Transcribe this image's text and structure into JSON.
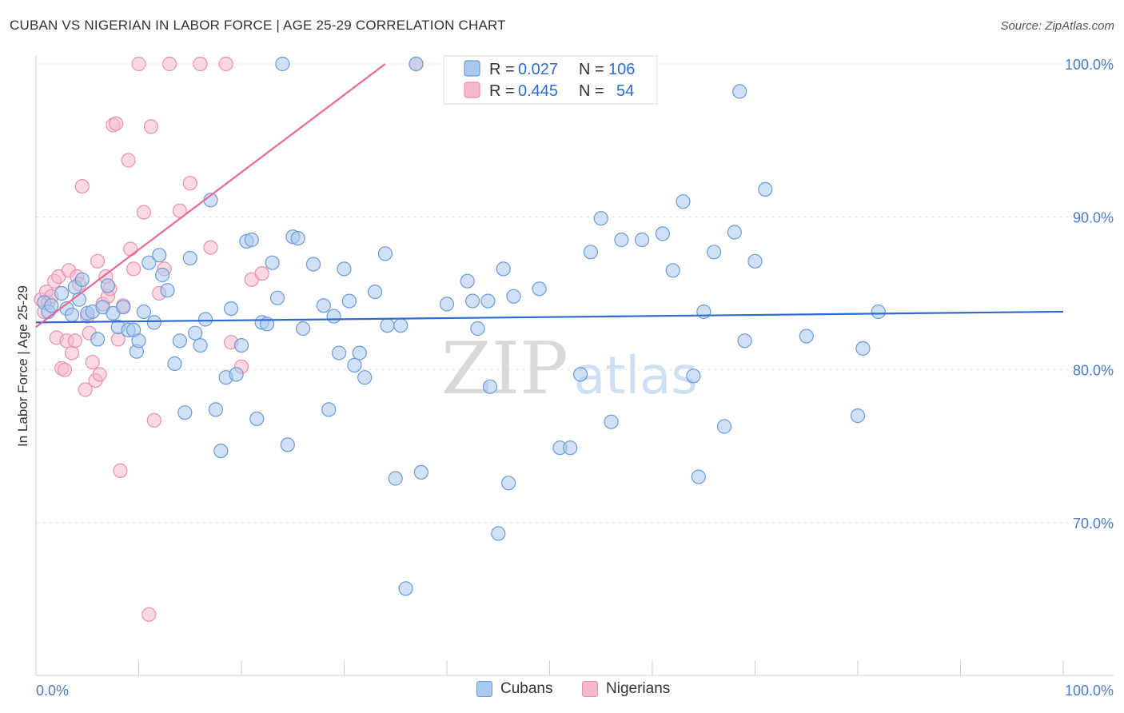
{
  "title": "CUBAN VS NIGERIAN IN LABOR FORCE | AGE 25-29 CORRELATION CHART",
  "source": "Source: ZipAtlas.com",
  "watermark": {
    "zip": "ZIP",
    "atlas": "atlas"
  },
  "legend": {
    "r_label": "R =",
    "n_label": "N =",
    "rows": [
      {
        "r": "0.027",
        "n": "106"
      },
      {
        "r": "0.445",
        "n": "54"
      }
    ]
  },
  "bottom_legend": {
    "cubans": "Cubans",
    "nigerians": "Nigerians"
  },
  "colors": {
    "cuban_fill": "#a9c8ee",
    "cuban_stroke": "#6b9ad8",
    "cuban_line": "#2f6bd0",
    "nigerian_fill": "#f6b9cc",
    "nigerian_stroke": "#e990ad",
    "nigerian_line": "#e46a93",
    "grid": "#e6e6e6",
    "axis_text": "#4a7bc8"
  },
  "chart_data": {
    "type": "scatter",
    "title": "CUBAN VS NIGERIAN IN LABOR FORCE | AGE 25-29 CORRELATION CHART",
    "xlabel": "",
    "ylabel": "In Labor Force | Age 25-29",
    "xlim": [
      0,
      100
    ],
    "ylim": [
      60,
      102
    ],
    "x_tick_labels": [
      "0.0%",
      "100.0%"
    ],
    "y_ticks": [
      70,
      80,
      90,
      100
    ],
    "y_tick_labels": [
      "70.0%",
      "80.0%",
      "90.0%",
      "100.0%"
    ],
    "legend_position": "top-center",
    "series": [
      {
        "name": "Cubans",
        "R": 0.027,
        "N": 106,
        "trendline": [
          [
            0,
            83.1
          ],
          [
            100,
            83.8
          ]
        ],
        "points": [
          [
            0.8,
            84.4
          ],
          [
            1.2,
            83.8
          ],
          [
            1.5,
            84.2
          ],
          [
            2.5,
            85.0
          ],
          [
            3,
            84.0
          ],
          [
            3.5,
            83.6
          ],
          [
            3.8,
            85.4
          ],
          [
            4.2,
            84.6
          ],
          [
            4.5,
            85.9
          ],
          [
            5,
            83.7
          ],
          [
            5.5,
            83.8
          ],
          [
            6,
            82.0
          ],
          [
            6.5,
            84.1
          ],
          [
            7,
            85.5
          ],
          [
            7.5,
            83.7
          ],
          [
            8,
            82.8
          ],
          [
            8.5,
            84.1
          ],
          [
            9,
            82.6
          ],
          [
            9.5,
            82.6
          ],
          [
            9.8,
            81.2
          ],
          [
            10,
            81.9
          ],
          [
            10.5,
            83.8
          ],
          [
            11,
            87.0
          ],
          [
            11.5,
            83.1
          ],
          [
            12,
            87.5
          ],
          [
            12.3,
            86.2
          ],
          [
            12.8,
            85.2
          ],
          [
            13.5,
            80.4
          ],
          [
            14,
            81.9
          ],
          [
            14.5,
            77.2
          ],
          [
            15,
            87.3
          ],
          [
            15.5,
            82.4
          ],
          [
            16,
            81.6
          ],
          [
            16.5,
            83.3
          ],
          [
            17,
            91.1
          ],
          [
            17.5,
            77.4
          ],
          [
            18,
            74.7
          ],
          [
            18.5,
            79.5
          ],
          [
            19,
            84.0
          ],
          [
            19.5,
            79.7
          ],
          [
            20,
            81.6
          ],
          [
            20.5,
            88.4
          ],
          [
            21,
            88.5
          ],
          [
            21.5,
            76.8
          ],
          [
            22,
            83.1
          ],
          [
            22.5,
            83.0
          ],
          [
            23,
            87.0
          ],
          [
            23.5,
            84.7
          ],
          [
            24,
            100.0
          ],
          [
            24.5,
            75.1
          ],
          [
            25,
            88.7
          ],
          [
            25.5,
            88.6
          ],
          [
            26,
            82.7
          ],
          [
            27,
            86.9
          ],
          [
            28,
            84.2
          ],
          [
            28.5,
            77.4
          ],
          [
            29,
            83.5
          ],
          [
            29.5,
            81.1
          ],
          [
            30,
            86.6
          ],
          [
            30.5,
            84.5
          ],
          [
            31,
            80.3
          ],
          [
            31.5,
            81.1
          ],
          [
            32,
            79.5
          ],
          [
            33,
            85.1
          ],
          [
            34,
            87.6
          ],
          [
            34.2,
            82.9
          ],
          [
            35,
            72.9
          ],
          [
            35.5,
            82.9
          ],
          [
            36,
            65.7
          ],
          [
            37,
            100.0
          ],
          [
            37.5,
            73.3
          ],
          [
            40,
            84.3
          ],
          [
            42,
            85.8
          ],
          [
            42.5,
            84.5
          ],
          [
            43,
            82.7
          ],
          [
            44,
            84.5
          ],
          [
            44.2,
            78.9
          ],
          [
            45,
            69.3
          ],
          [
            45.5,
            86.6
          ],
          [
            46,
            72.6
          ],
          [
            46.5,
            84.8
          ],
          [
            49,
            85.3
          ],
          [
            51,
            74.9
          ],
          [
            52,
            74.9
          ],
          [
            53,
            79.7
          ],
          [
            54,
            87.7
          ],
          [
            55,
            89.9
          ],
          [
            56,
            76.6
          ],
          [
            57,
            88.5
          ],
          [
            59,
            88.5
          ],
          [
            61,
            88.9
          ],
          [
            62,
            86.5
          ],
          [
            63,
            91.0
          ],
          [
            64,
            79.6
          ],
          [
            64.5,
            73.0
          ],
          [
            65,
            83.8
          ],
          [
            66,
            87.7
          ],
          [
            67,
            76.3
          ],
          [
            68,
            89.0
          ],
          [
            68.5,
            98.2
          ],
          [
            69,
            81.9
          ],
          [
            70,
            87.1
          ],
          [
            71,
            91.8
          ],
          [
            75,
            82.2
          ],
          [
            80,
            77.0
          ],
          [
            80.5,
            81.4
          ],
          [
            82,
            83.8
          ]
        ]
      },
      {
        "name": "Nigerians",
        "R": 0.445,
        "N": 54,
        "trendline": [
          [
            0,
            82.8
          ],
          [
            34,
            100.0
          ]
        ],
        "points": [
          [
            0.5,
            84.6
          ],
          [
            0.8,
            83.8
          ],
          [
            1,
            85.1
          ],
          [
            1.2,
            84.4
          ],
          [
            1.5,
            84.8
          ],
          [
            1.8,
            85.8
          ],
          [
            2,
            82.1
          ],
          [
            2.2,
            86.1
          ],
          [
            2.5,
            80.1
          ],
          [
            2.8,
            80.0
          ],
          [
            3,
            81.9
          ],
          [
            3.2,
            86.5
          ],
          [
            3.5,
            81.1
          ],
          [
            3.8,
            81.9
          ],
          [
            4,
            86.1
          ],
          [
            4.2,
            85.6
          ],
          [
            4.5,
            92.0
          ],
          [
            4.8,
            78.7
          ],
          [
            5,
            83.5
          ],
          [
            5.2,
            82.4
          ],
          [
            5.5,
            80.5
          ],
          [
            5.8,
            79.3
          ],
          [
            6,
            87.1
          ],
          [
            6.2,
            79.7
          ],
          [
            6.5,
            84.3
          ],
          [
            6.8,
            86.1
          ],
          [
            7,
            84.8
          ],
          [
            7.2,
            85.3
          ],
          [
            7.5,
            96.0
          ],
          [
            7.8,
            96.1
          ],
          [
            8,
            82.0
          ],
          [
            8.2,
            73.4
          ],
          [
            8.5,
            84.2
          ],
          [
            9,
            93.7
          ],
          [
            9.2,
            87.9
          ],
          [
            9.5,
            86.6
          ],
          [
            10,
            100.0
          ],
          [
            10.5,
            90.3
          ],
          [
            11,
            64.0
          ],
          [
            11.2,
            95.9
          ],
          [
            11.5,
            76.7
          ],
          [
            12,
            85.0
          ],
          [
            12.5,
            86.6
          ],
          [
            13,
            100.0
          ],
          [
            14,
            90.4
          ],
          [
            15,
            92.2
          ],
          [
            16,
            100.0
          ],
          [
            17,
            88.0
          ],
          [
            18.5,
            100.0
          ],
          [
            19,
            81.8
          ],
          [
            20,
            80.2
          ],
          [
            21,
            85.9
          ],
          [
            22,
            86.3
          ],
          [
            37,
            100.0
          ]
        ]
      }
    ]
  }
}
